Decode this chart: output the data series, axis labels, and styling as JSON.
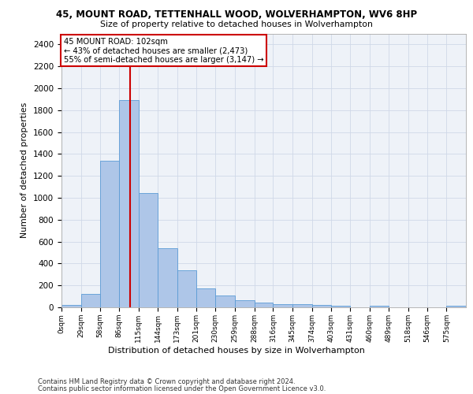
{
  "title_line1": "45, MOUNT ROAD, TETTENHALL WOOD, WOLVERHAMPTON, WV6 8HP",
  "title_line2": "Size of property relative to detached houses in Wolverhampton",
  "xlabel": "Distribution of detached houses by size in Wolverhampton",
  "ylabel": "Number of detached properties",
  "footer_line1": "Contains HM Land Registry data © Crown copyright and database right 2024.",
  "footer_line2": "Contains public sector information licensed under the Open Government Licence v3.0.",
  "annotation_line1": "45 MOUNT ROAD: 102sqm",
  "annotation_line2": "← 43% of detached houses are smaller (2,473)",
  "annotation_line3": "55% of semi-detached houses are larger (3,147) →",
  "property_size": 102,
  "bar_color": "#aec6e8",
  "bar_edge_color": "#5b9bd5",
  "vline_color": "#cc0000",
  "annotation_box_color": "#cc0000",
  "grid_color": "#d0d8e8",
  "bg_color": "#eef2f8",
  "categories": [
    "0sqm",
    "29sqm",
    "58sqm",
    "86sqm",
    "115sqm",
    "144sqm",
    "173sqm",
    "201sqm",
    "230sqm",
    "259sqm",
    "288sqm",
    "316sqm",
    "345sqm",
    "374sqm",
    "403sqm",
    "431sqm",
    "460sqm",
    "489sqm",
    "518sqm",
    "546sqm",
    "575sqm"
  ],
  "bin_edges": [
    0,
    29,
    58,
    86,
    115,
    144,
    173,
    201,
    230,
    259,
    288,
    316,
    345,
    374,
    403,
    431,
    460,
    489,
    518,
    546,
    575,
    604
  ],
  "bar_heights": [
    18,
    125,
    1340,
    1890,
    1045,
    540,
    335,
    170,
    110,
    65,
    42,
    28,
    28,
    22,
    12,
    0,
    14,
    0,
    0,
    0,
    15
  ],
  "ylim": [
    0,
    2500
  ],
  "yticks": [
    0,
    200,
    400,
    600,
    800,
    1000,
    1200,
    1400,
    1600,
    1800,
    2000,
    2200,
    2400
  ]
}
